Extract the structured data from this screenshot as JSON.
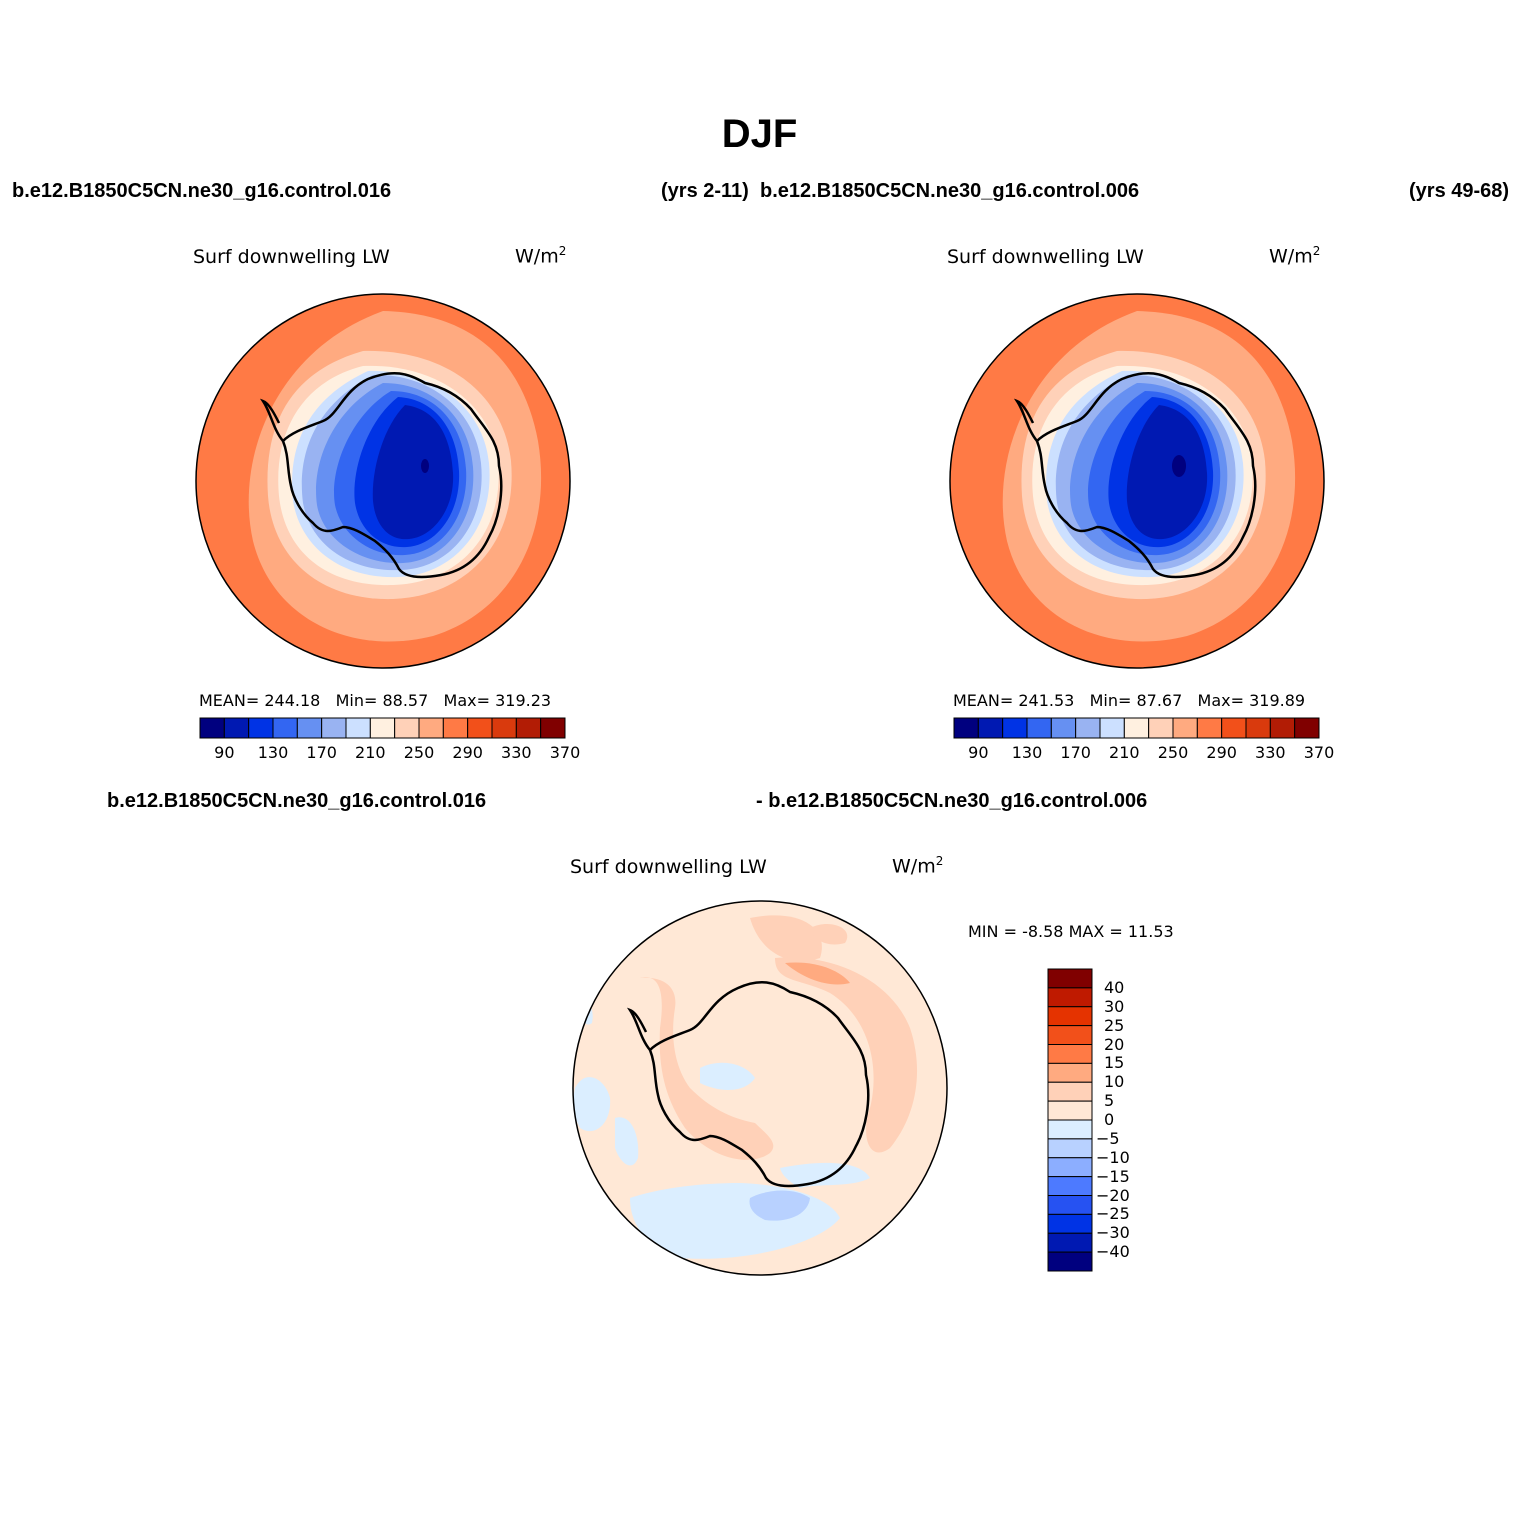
{
  "figure": {
    "title": "DJF",
    "case_top_left": "b.e12.B1850C5CN.ne30_g16.control.016",
    "years_top_left": "(yrs 2-11)",
    "case_top_right": "b.e12.B1850C5CN.ne30_g16.control.006",
    "years_top_right": "(yrs 49-68)",
    "diff_case_a": "b.e12.B1850C5CN.ne30_g16.control.016",
    "diff_case_b": "- b.e12.B1850C5CN.ne30_g16.control.006"
  },
  "panels": [
    {
      "variable": "Surf downwelling LW",
      "unit": "W/m",
      "unit_sup": "2",
      "mean_label": "MEAN=",
      "mean": "244.18",
      "min_label": "Min=",
      "min": "88.57",
      "max_label": "Max=",
      "max": "319.23"
    },
    {
      "variable": "Surf downwelling LW",
      "unit": "W/m",
      "unit_sup": "2",
      "mean_label": "MEAN=",
      "mean": "241.53",
      "min_label": "Min=",
      "min": "87.67",
      "max_label": "Max=",
      "max": "319.89"
    },
    {
      "variable": "Surf downwelling LW",
      "unit": "W/m",
      "unit_sup": "2",
      "min_label": "MIN =",
      "min": "-8.58",
      "max_label": "MAX =",
      "max": "11.53"
    }
  ],
  "colorbar_abs": {
    "colors": [
      "#00007f",
      "#0019b2",
      "#0033e5",
      "#3366f2",
      "#6690f2",
      "#99b3f2",
      "#cce0ff",
      "#fff0e0",
      "#ffd1b8",
      "#ffaa80",
      "#ff7a45",
      "#f2501a",
      "#d93a0d",
      "#b21c05",
      "#800000"
    ],
    "tick_labels": [
      "90",
      "130",
      "170",
      "210",
      "250",
      "290",
      "330",
      "370"
    ]
  },
  "colorbar_diff": {
    "colors": [
      "#800000",
      "#bf1a00",
      "#e53300",
      "#f2501a",
      "#ff7a45",
      "#ffaa80",
      "#ffd1b8",
      "#ffe8d6",
      "#dbeeff",
      "#b8d1ff",
      "#8caeff",
      "#4d7aff",
      "#2652f2",
      "#0033e5",
      "#0019b2",
      "#00007f"
    ],
    "tick_labels": [
      "40",
      "30",
      "25",
      "20",
      "15",
      "10",
      "5",
      "0",
      "−5",
      "−10",
      "−15",
      "−20",
      "−25",
      "−30",
      "−40"
    ]
  }
}
